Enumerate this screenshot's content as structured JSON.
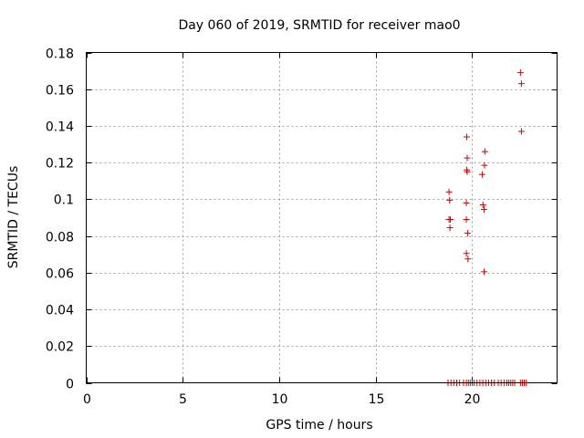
{
  "chart_data": {
    "type": "scatter",
    "title": "Day 060 of 2019, SRMTID for receiver mao0",
    "xlabel": "GPS time / hours",
    "ylabel": "SRMTID / TECUs",
    "xlim": [
      0,
      24.4
    ],
    "ylim": [
      0,
      0.18
    ],
    "xticks": [
      0,
      5,
      10,
      15,
      20
    ],
    "xtick_labels": [
      "0",
      "5",
      "10",
      "15",
      "20"
    ],
    "yticks": [
      0,
      0.02,
      0.04,
      0.06,
      0.08,
      0.1,
      0.12,
      0.14,
      0.16,
      0.18
    ],
    "ytick_labels": [
      "0",
      "0.02",
      "0.04",
      "0.06",
      "0.08",
      "0.1",
      "0.12",
      "0.14",
      "0.16",
      "0.18"
    ],
    "grid": true,
    "marker_color": "#d40000",
    "series": [
      {
        "name": "SRMTID",
        "marker": "plus",
        "points": [
          {
            "x": 18.8,
            "y": 0.104
          },
          {
            "x": 18.83,
            "y": 0.0995
          },
          {
            "x": 18.8,
            "y": 0.089
          },
          {
            "x": 18.87,
            "y": 0.089
          },
          {
            "x": 18.85,
            "y": 0.0845
          },
          {
            "x": 19.72,
            "y": 0.134
          },
          {
            "x": 19.74,
            "y": 0.1225
          },
          {
            "x": 19.72,
            "y": 0.116
          },
          {
            "x": 19.74,
            "y": 0.115
          },
          {
            "x": 19.7,
            "y": 0.098
          },
          {
            "x": 19.7,
            "y": 0.089
          },
          {
            "x": 19.76,
            "y": 0.0815
          },
          {
            "x": 19.7,
            "y": 0.0705
          },
          {
            "x": 19.78,
            "y": 0.0675
          },
          {
            "x": 20.52,
            "y": 0.1135
          },
          {
            "x": 20.66,
            "y": 0.126
          },
          {
            "x": 20.64,
            "y": 0.1185
          },
          {
            "x": 20.56,
            "y": 0.097
          },
          {
            "x": 20.62,
            "y": 0.0945
          },
          {
            "x": 20.62,
            "y": 0.0605
          },
          {
            "x": 22.5,
            "y": 0.169
          },
          {
            "x": 22.55,
            "y": 0.163
          },
          {
            "x": 22.55,
            "y": 0.137
          },
          {
            "x": 18.75,
            "y": 0
          },
          {
            "x": 18.9,
            "y": 0
          },
          {
            "x": 19.05,
            "y": 0
          },
          {
            "x": 19.2,
            "y": 0
          },
          {
            "x": 19.35,
            "y": 0
          },
          {
            "x": 19.55,
            "y": 0
          },
          {
            "x": 19.7,
            "y": 0
          },
          {
            "x": 19.8,
            "y": 0
          },
          {
            "x": 19.9,
            "y": 0
          },
          {
            "x": 20.0,
            "y": 0
          },
          {
            "x": 20.1,
            "y": 0
          },
          {
            "x": 20.25,
            "y": 0
          },
          {
            "x": 20.4,
            "y": 0
          },
          {
            "x": 20.55,
            "y": 0
          },
          {
            "x": 20.7,
            "y": 0
          },
          {
            "x": 20.85,
            "y": 0
          },
          {
            "x": 21.0,
            "y": 0
          },
          {
            "x": 21.15,
            "y": 0
          },
          {
            "x": 21.35,
            "y": 0
          },
          {
            "x": 21.5,
            "y": 0
          },
          {
            "x": 21.65,
            "y": 0
          },
          {
            "x": 21.8,
            "y": 0
          },
          {
            "x": 21.9,
            "y": 0
          },
          {
            "x": 22.0,
            "y": 0
          },
          {
            "x": 22.1,
            "y": 0
          },
          {
            "x": 22.2,
            "y": 0
          },
          {
            "x": 22.5,
            "y": 0
          },
          {
            "x": 22.6,
            "y": 0
          },
          {
            "x": 22.7,
            "y": 0
          },
          {
            "x": 22.8,
            "y": 0
          }
        ]
      }
    ]
  }
}
